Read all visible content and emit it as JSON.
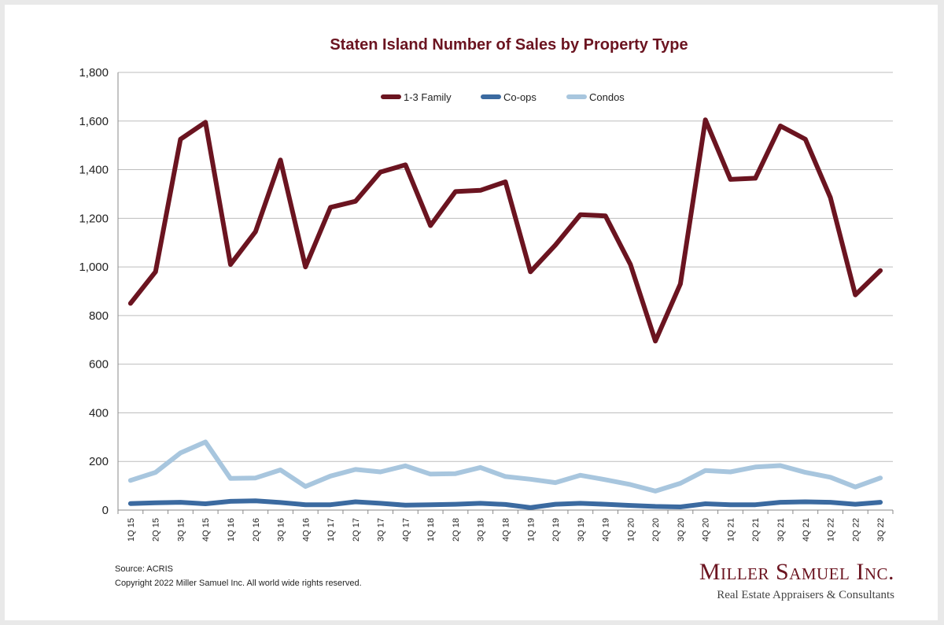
{
  "chart_data": {
    "type": "line",
    "title": "Staten Island Number of Sales by Property Type",
    "xlabel": "",
    "ylabel": "",
    "ylim": [
      0,
      1800
    ],
    "yticks": [
      0,
      200,
      400,
      600,
      800,
      1000,
      1200,
      1400,
      1600,
      1800
    ],
    "ytick_labels": [
      "0",
      "200",
      "400",
      "600",
      "800",
      "1,000",
      "1,200",
      "1,400",
      "1,600",
      "1,800"
    ],
    "grid": true,
    "legend_position": "top-center",
    "categories": [
      "1Q 15",
      "2Q 15",
      "3Q 15",
      "4Q 15",
      "1Q 16",
      "2Q 16",
      "3Q 16",
      "4Q 16",
      "1Q 17",
      "2Q 17",
      "3Q 17",
      "4Q 17",
      "1Q 18",
      "2Q 18",
      "3Q 18",
      "4Q 18",
      "1Q 19",
      "2Q 19",
      "3Q 19",
      "4Q 19",
      "1Q 20",
      "2Q 20",
      "3Q 20",
      "4Q 20",
      "1Q 21",
      "2Q 21",
      "3Q 21",
      "4Q 21",
      "1Q 22",
      "2Q 22",
      "3Q 22"
    ],
    "series": [
      {
        "name": "1-3 Family",
        "color": "#6b1420",
        "values": [
          850,
          980,
          1525,
          1595,
          1010,
          1145,
          1440,
          1000,
          1245,
          1270,
          1390,
          1420,
          1170,
          1310,
          1315,
          1350,
          980,
          1090,
          1215,
          1210,
          1010,
          695,
          930,
          1605,
          1360,
          1365,
          1580,
          1525,
          1285,
          885,
          985
        ]
      },
      {
        "name": "Co-ops",
        "color": "#3b6aa0",
        "values": [
          27,
          30,
          32,
          26,
          36,
          38,
          31,
          22,
          22,
          34,
          28,
          20,
          22,
          24,
          28,
          23,
          10,
          24,
          28,
          24,
          19,
          15,
          13,
          26,
          22,
          22,
          32,
          34,
          32,
          24,
          32
        ]
      },
      {
        "name": "Condos",
        "color": "#a8c6de",
        "values": [
          122,
          155,
          235,
          280,
          130,
          132,
          165,
          97,
          140,
          167,
          157,
          182,
          148,
          150,
          175,
          138,
          127,
          113,
          143,
          125,
          105,
          78,
          110,
          163,
          157,
          177,
          183,
          155,
          135,
          95,
          132
        ]
      }
    ]
  },
  "footer": {
    "source": "Source: ACRIS",
    "copyright": "Copyright 2022 Miller Samuel Inc.  All world wide rights reserved."
  },
  "brand": {
    "name": "Miller Samuel Inc.",
    "tagline": "Real Estate Appraisers & Consultants"
  }
}
